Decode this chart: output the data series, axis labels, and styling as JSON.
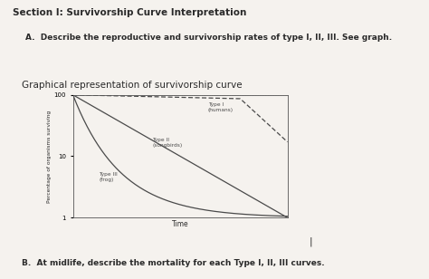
{
  "title_section": "Section I: Survivorship Curve Interpretation",
  "question_a": "A.  Describe the reproductive and survivorship rates of type I, II, III. See graph.",
  "graph_title": "Graphical representation of survivorship curve",
  "ylabel": "Percentage of organisms surviving",
  "xlabel": "Time",
  "type1_label": "Type I\n(humans)",
  "type2_label": "Type II\n(songbirds)",
  "type3_label": "Type III\n(frog)",
  "question_b": "B.  At midlife, describe the mortality for each Type I, II, III curves.",
  "bg_color": "#f5f2ee",
  "text_color": "#2a2a2a",
  "line_color": "#4a4a4a"
}
